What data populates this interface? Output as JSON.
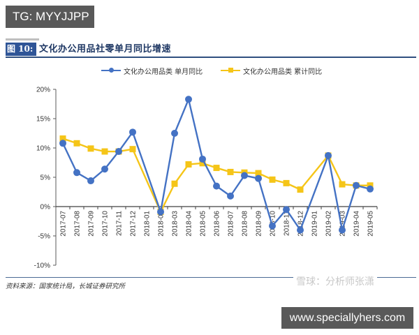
{
  "overlay": {
    "tg_label": "TG: MYYJJPP",
    "site_label": "www.speciallyhers.com",
    "watermark": "雪球：分析师张潇"
  },
  "figure": {
    "number_label": "图 10:",
    "title": "文化办公用品社零单月同比增速",
    "source": "资料来源：国家统计局，长城证券研究所"
  },
  "colors": {
    "series_monthly": "#4472c4",
    "series_cumulative": "#f5c518",
    "title_box": "#2f5597"
  },
  "chart_data": {
    "type": "line",
    "title": "文化办公用品社零单月同比增速",
    "xlabel": "",
    "ylabel": "",
    "ylim": [
      -10,
      20
    ],
    "yticks": [
      "-10%",
      "-5%",
      "0%",
      "5%",
      "10%",
      "15%",
      "20%"
    ],
    "ytick_values": [
      -10,
      -5,
      0,
      5,
      10,
      15,
      20
    ],
    "grid": false,
    "legend_position": "top",
    "categories": [
      "2017-07",
      "2017-08",
      "2017-09",
      "2017-10",
      "2017-11",
      "2017-12",
      "2018-01",
      "2018-02",
      "2018-03",
      "2018-04",
      "2018-05",
      "2018-06",
      "2018-07",
      "2018-08",
      "2018-09",
      "2018-10",
      "2018-11",
      "2018-12",
      "2019-01",
      "2019-02",
      "2019-03",
      "2019-04",
      "2019-05"
    ],
    "series": [
      {
        "name": "文化办公用品类 单月同比",
        "marker": "circle",
        "color": "#4472c4",
        "values": [
          10.8,
          5.8,
          4.4,
          6.4,
          9.4,
          12.7,
          null,
          -0.9,
          12.5,
          18.3,
          8.1,
          3.5,
          1.8,
          5.3,
          4.8,
          -3.3,
          -0.5,
          -4.0,
          null,
          8.7,
          -4.0,
          3.6,
          3.0
        ]
      },
      {
        "name": "文化办公用品类 累计同比",
        "marker": "square",
        "color": "#f5c518",
        "values": [
          11.6,
          10.8,
          9.9,
          9.4,
          9.4,
          9.8,
          null,
          -0.9,
          3.9,
          7.2,
          7.4,
          6.6,
          5.9,
          5.8,
          5.7,
          4.6,
          4.0,
          2.9,
          null,
          8.7,
          3.8,
          3.6,
          3.6
        ]
      }
    ]
  }
}
